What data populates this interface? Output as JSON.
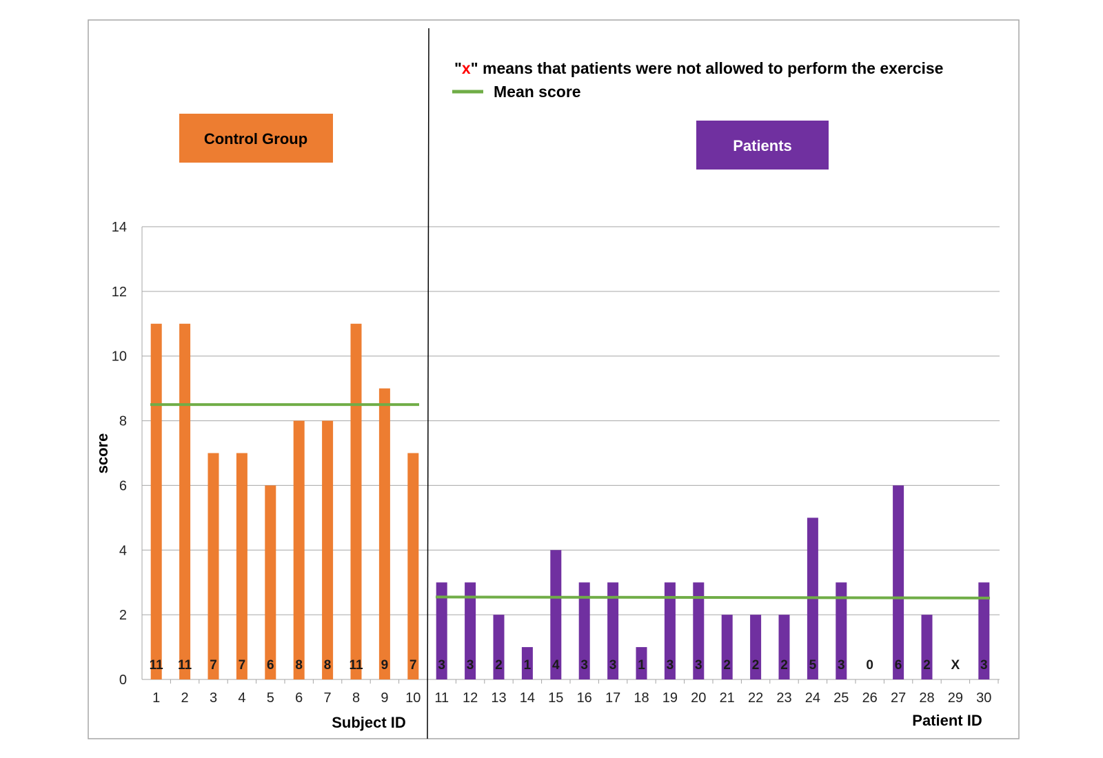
{
  "chart_data": {
    "type": "bar",
    "ylabel": "score",
    "ylim": [
      0,
      14
    ],
    "yticks": [
      0,
      2,
      4,
      6,
      8,
      10,
      12,
      14
    ],
    "grid": true,
    "groups": [
      {
        "box_label": "Control Group",
        "xlabel": "Subject ID",
        "categories": [
          "1",
          "2",
          "3",
          "4",
          "5",
          "6",
          "7",
          "8",
          "9",
          "10"
        ],
        "values": [
          11,
          11,
          7,
          7,
          6,
          8,
          8,
          11,
          9,
          7
        ],
        "data_labels": [
          "11",
          "11",
          "7",
          "7",
          "6",
          "8",
          "8",
          "11",
          "9",
          "7"
        ],
        "mean": 8.5,
        "color": "#ED7D31"
      },
      {
        "box_label": "Patients",
        "xlabel": "Patient ID",
        "categories": [
          "11",
          "12",
          "13",
          "14",
          "15",
          "16",
          "17",
          "18",
          "19",
          "20",
          "21",
          "22",
          "23",
          "24",
          "25",
          "26",
          "27",
          "28",
          "29",
          "30"
        ],
        "values": [
          3,
          3,
          2,
          1,
          4,
          3,
          3,
          1,
          3,
          3,
          2,
          2,
          2,
          5,
          3,
          0,
          6,
          2,
          null,
          3
        ],
        "data_labels": [
          "3",
          "3",
          "2",
          "1",
          "4",
          "3",
          "3",
          "1",
          "3",
          "3",
          "2",
          "2",
          "2",
          "5",
          "3",
          "0",
          "6",
          "2",
          "X",
          "3"
        ],
        "mean": 2.55,
        "color": "#7030A0"
      }
    ],
    "mean_color": "#70AD47",
    "missing_marker_color": "#FF0000",
    "legend": {
      "note_prefix": "\"",
      "note_marker": "x",
      "note_suffix": "\" means that patients were not allowed to perform the exercise",
      "mean_label": "Mean score",
      "placement": "top-right"
    }
  }
}
